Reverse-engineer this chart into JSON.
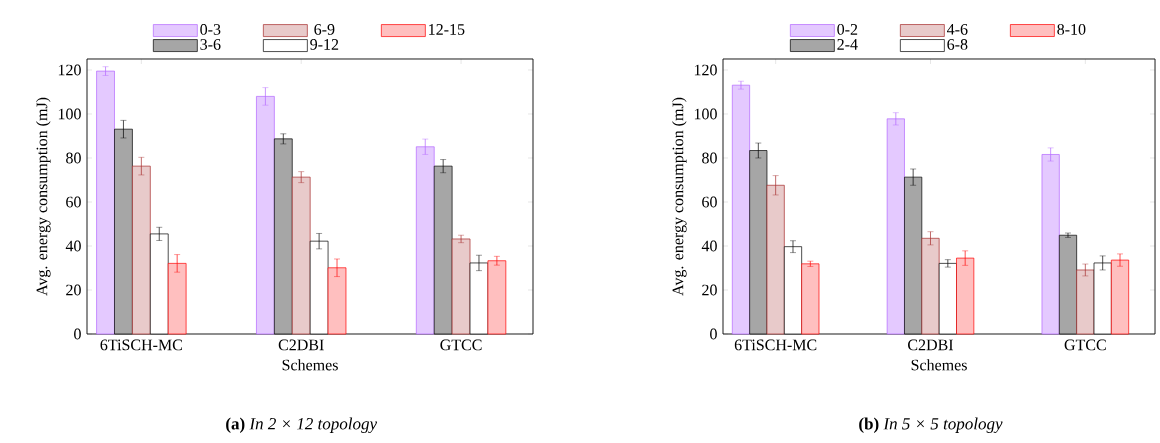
{
  "chart_data": [
    {
      "type": "bar",
      "categories": [
        "6TiSCH-MC",
        "C2DBI",
        "GTCC"
      ],
      "xlabel": "Schemes",
      "ylabel": "Avg. energy consumption (mJ)",
      "ylim": [
        0,
        125
      ],
      "yticks": [
        0,
        20,
        40,
        60,
        80,
        100,
        120
      ],
      "legend": "top",
      "series": [
        {
          "name": "0-3",
          "color": "#b266ff",
          "values": [
            119.5,
            108,
            85.1
          ],
          "errors": [
            2,
            4,
            3.5
          ]
        },
        {
          "name": "3-6",
          "color": "#000000",
          "values": [
            93.1,
            88.7,
            76.3
          ],
          "errors": [
            4,
            2.3,
            3
          ]
        },
        {
          "name": "6-9",
          "color": "#a52a2a",
          "values": [
            76.3,
            71.3,
            43.2
          ],
          "errors": [
            4,
            2.5,
            1.7
          ]
        },
        {
          "name": "9-12",
          "color": "#000000",
          "values": [
            45.5,
            42.2,
            32.3
          ],
          "errors": [
            3,
            3.5,
            3.5
          ]
        },
        {
          "name": "12-15",
          "color": "#ff0000",
          "values": [
            32.1,
            30.1,
            33.3
          ],
          "errors": [
            4,
            4,
            2
          ]
        }
      ],
      "annotations": [
        "**(a)** *In 2 × 12 topology*"
      ]
    },
    {
      "type": "bar",
      "categories": [
        "6TiSCH-MC",
        "C2DBI",
        "GTCC"
      ],
      "xlabel": "Schemes",
      "ylabel": "Avg. energy consumption (mJ)",
      "ylim": [
        0,
        125
      ],
      "yticks": [
        0,
        20,
        40,
        60,
        80,
        100,
        120
      ],
      "legend": "top",
      "series": [
        {
          "name": "0-2",
          "color": "#b266ff",
          "values": [
            113.1,
            97.8,
            81.6
          ],
          "errors": [
            1.8,
            2.8,
            3
          ]
        },
        {
          "name": "2-4",
          "color": "#000000",
          "values": [
            83.4,
            71.3,
            44.9
          ],
          "errors": [
            3.4,
            3.7,
            1
          ]
        },
        {
          "name": "4-6",
          "color": "#a52a2a",
          "values": [
            67.6,
            43.5,
            29.1
          ],
          "errors": [
            4.4,
            3,
            2.7
          ]
        },
        {
          "name": "6-8",
          "color": "#000000",
          "values": [
            39.7,
            32.1,
            32.3
          ],
          "errors": [
            2.7,
            1.7,
            3.2
          ]
        },
        {
          "name": "8-10",
          "color": "#ff0000",
          "values": [
            31.9,
            34.5,
            33.6
          ],
          "errors": [
            1.2,
            3.3,
            2.8
          ]
        }
      ],
      "annotations": [
        "**(b)** *In 5 × 5 topology*"
      ]
    }
  ]
}
